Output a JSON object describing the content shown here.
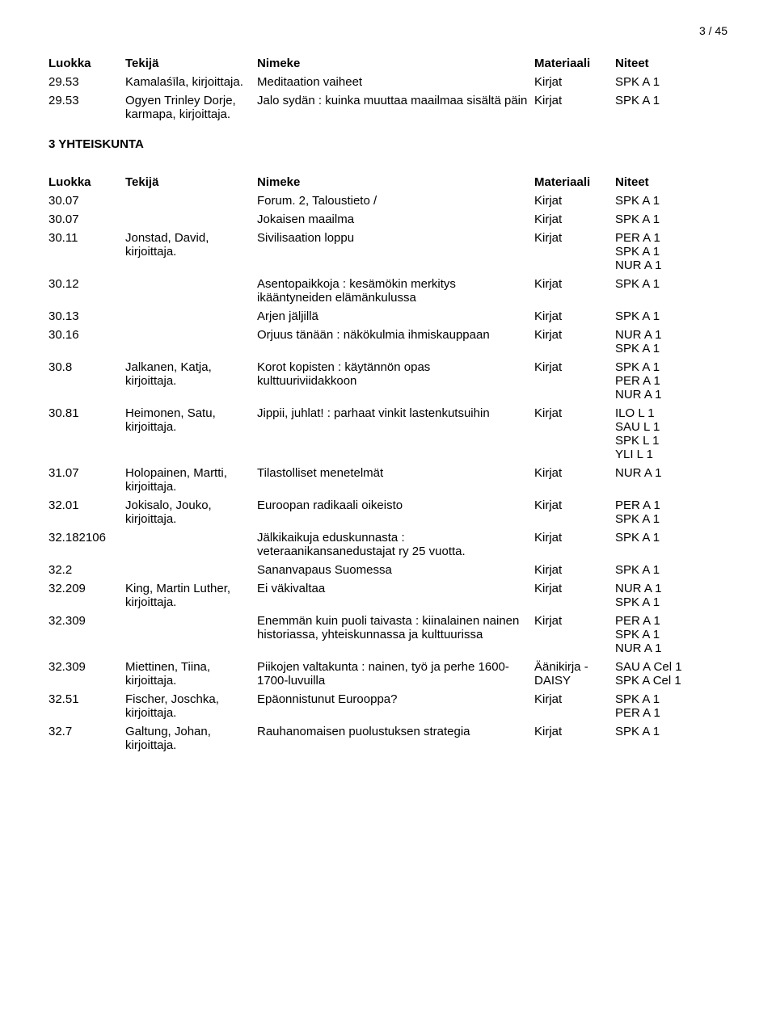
{
  "page_number": "3 / 45",
  "headers": {
    "luokka": "Luokka",
    "tekija": "Tekijä",
    "nimeke": "Nimeke",
    "materiaali": "Materiaali",
    "niteet": "Niteet"
  },
  "section1_rows": [
    {
      "luokka": "29.53",
      "tekija": "Kamalaśīla, kirjoittaja.",
      "nimeke": "Meditaation vaiheet",
      "materiaali": "Kirjat",
      "niteet": [
        "SPK A 1"
      ]
    },
    {
      "luokka": "29.53",
      "tekija": "Ogyen Trinley Dorje, karmapa, kirjoittaja.",
      "nimeke": "Jalo sydän : kuinka muuttaa maailmaa sisältä päin",
      "materiaali": "Kirjat",
      "niteet": [
        "SPK A 1"
      ]
    }
  ],
  "section2_title": "3 YHTEISKUNTA",
  "section2_rows": [
    {
      "luokka": "30.07",
      "tekija": "",
      "nimeke": "Forum. 2, Taloustieto /",
      "materiaali": "Kirjat",
      "niteet": [
        "SPK A 1"
      ]
    },
    {
      "luokka": "30.07",
      "tekija": "",
      "nimeke": "Jokaisen maailma",
      "materiaali": "Kirjat",
      "niteet": [
        "SPK A 1"
      ]
    },
    {
      "luokka": "30.11",
      "tekija": "Jonstad, David, kirjoittaja.",
      "nimeke": "Sivilisaation loppu",
      "materiaali": "Kirjat",
      "niteet": [
        "PER A 1",
        "SPK A 1",
        "NUR A 1"
      ]
    },
    {
      "luokka": "30.12",
      "tekija": "",
      "nimeke": "Asentopaikkoja : kesämökin merkitys ikääntyneiden elämänkulussa",
      "materiaali": "Kirjat",
      "niteet": [
        "SPK A 1"
      ]
    },
    {
      "luokka": "30.13",
      "tekija": "",
      "nimeke": "Arjen jäljillä",
      "materiaali": "Kirjat",
      "niteet": [
        "SPK A 1"
      ]
    },
    {
      "luokka": "30.16",
      "tekija": "",
      "nimeke": "Orjuus tänään : näkökulmia ihmiskauppaan",
      "materiaali": "Kirjat",
      "niteet": [
        "NUR A 1",
        "SPK A 1"
      ]
    },
    {
      "luokka": "30.8",
      "tekija": "Jalkanen, Katja, kirjoittaja.",
      "nimeke": "Korot kopisten : käytännön opas kulttuuriviidakkoon",
      "materiaali": "Kirjat",
      "niteet": [
        "SPK A 1",
        "PER A 1",
        "NUR A 1"
      ]
    },
    {
      "luokka": "30.81",
      "tekija": "Heimonen, Satu, kirjoittaja.",
      "nimeke": "Jippii, juhlat! : parhaat vinkit lastenkutsuihin",
      "materiaali": "Kirjat",
      "niteet": [
        "ILO L 1",
        "SAU L 1",
        "SPK L 1",
        "YLI L 1"
      ]
    },
    {
      "luokka": "31.07",
      "tekija": "Holopainen, Martti, kirjoittaja.",
      "nimeke": "Tilastolliset menetelmät",
      "materiaali": "Kirjat",
      "niteet": [
        "NUR A 1"
      ]
    },
    {
      "luokka": "32.01",
      "tekija": "Jokisalo, Jouko, kirjoittaja.",
      "nimeke": "Euroopan radikaali oikeisto",
      "materiaali": "Kirjat",
      "niteet": [
        "PER A 1",
        "SPK A 1"
      ]
    },
    {
      "luokka": "32.182106",
      "tekija": "",
      "nimeke": "Jälkikaikuja eduskunnasta : veteraanikansanedustajat ry 25 vuotta.",
      "materiaali": "Kirjat",
      "niteet": [
        "SPK A 1"
      ]
    },
    {
      "luokka": "32.2",
      "tekija": "",
      "nimeke": "Sananvapaus Suomessa",
      "materiaali": "Kirjat",
      "niteet": [
        "SPK A 1"
      ]
    },
    {
      "luokka": "32.209",
      "tekija": "King, Martin Luther, kirjoittaja.",
      "nimeke": "Ei väkivaltaa",
      "materiaali": "Kirjat",
      "niteet": [
        "NUR A 1",
        "SPK A 1"
      ]
    },
    {
      "luokka": "32.309",
      "tekija": "",
      "nimeke": "Enemmän kuin puoli taivasta : kiinalainen nainen historiassa, yhteiskunnassa ja kulttuurissa",
      "materiaali": "Kirjat",
      "niteet": [
        "PER A 1",
        "SPK A 1",
        "NUR A 1"
      ]
    },
    {
      "luokka": "32.309",
      "tekija": "Miettinen, Tiina, kirjoittaja.",
      "nimeke": "Piikojen valtakunta : nainen, työ ja perhe 1600-1700-luvuilla",
      "materiaali": "Äänikirja - DAISY",
      "niteet": [
        "SAU A Cel 1",
        "SPK A Cel 1"
      ]
    },
    {
      "luokka": "32.51",
      "tekija": "Fischer, Joschka, kirjoittaja.",
      "nimeke": "Epäonnistunut Eurooppa?",
      "materiaali": "Kirjat",
      "niteet": [
        "SPK A 1",
        "PER A 1"
      ]
    },
    {
      "luokka": "32.7",
      "tekija": "Galtung, Johan, kirjoittaja.",
      "nimeke": "Rauhanomaisen puolustuksen strategia",
      "materiaali": "Kirjat",
      "niteet": [
        "SPK A 1"
      ]
    }
  ]
}
